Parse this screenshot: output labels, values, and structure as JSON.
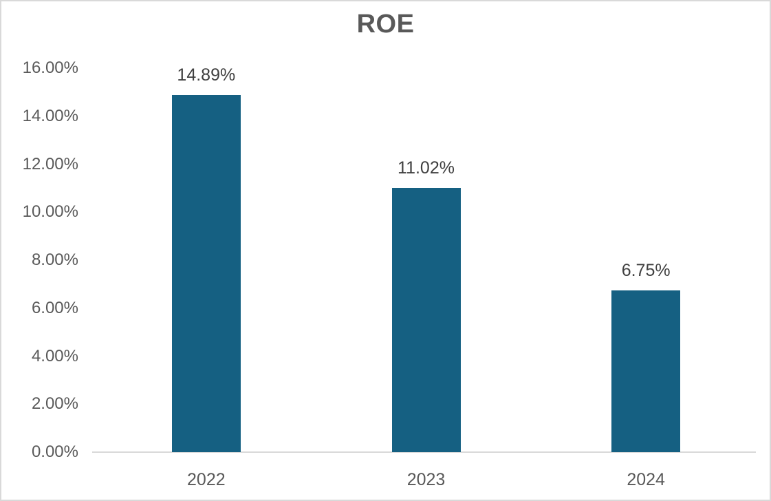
{
  "chart_data": {
    "type": "bar",
    "title": "ROE",
    "categories": [
      "2022",
      "2023",
      "2024"
    ],
    "values": [
      14.89,
      11.02,
      6.75
    ],
    "data_labels": [
      "14.89%",
      "11.02%",
      "6.75%"
    ],
    "series": [
      {
        "name": "ROE",
        "values": [
          14.89,
          11.02,
          6.75
        ]
      }
    ],
    "xlabel": "",
    "ylabel": "",
    "ylim": [
      0,
      16
    ],
    "y_ticks": [
      {
        "value": 0,
        "label": "0.00%"
      },
      {
        "value": 2,
        "label": "2.00%"
      },
      {
        "value": 4,
        "label": "4.00%"
      },
      {
        "value": 6,
        "label": "6.00%"
      },
      {
        "value": 8,
        "label": "8.00%"
      },
      {
        "value": 10,
        "label": "10.00%"
      },
      {
        "value": 12,
        "label": "12.00%"
      },
      {
        "value": 14,
        "label": "14.00%"
      },
      {
        "value": 16,
        "label": "16.00%"
      }
    ],
    "grid": false,
    "legend": false,
    "colors": {
      "bar": "#156082",
      "axis_line": "#d9d9d9",
      "title_text": "#595959",
      "axis_label_text": "#595959",
      "data_label_text": "#404040",
      "chart_border": "#d9d9d9",
      "background": "#ffffff"
    }
  }
}
